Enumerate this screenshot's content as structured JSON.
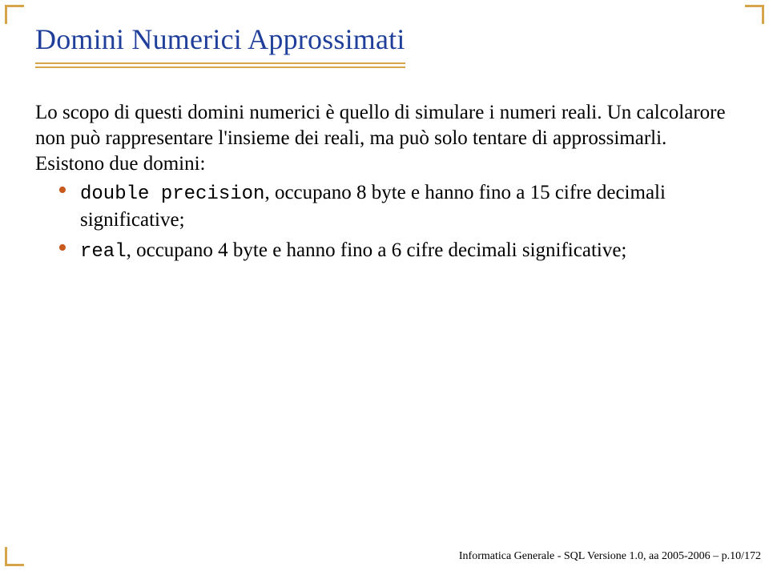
{
  "accent_color": "#d6a54a",
  "title_color": "#1f3f9b",
  "bullet_color": "#c85a1e",
  "background_color": "#ffffff",
  "text_color": "#000000",
  "title": "Domini Numerici Approssimati",
  "para1": "Lo scopo di questi domini numerici è quello di simulare i numeri reali. Un calcolarore non può rappresentare l'insieme dei reali, ma può solo tentare di approssimarli. Esistono due domini:",
  "bullets": [
    {
      "code": "double precision",
      "rest": ", occupano 8 byte e hanno fino a 15 cifre decimali significative;"
    },
    {
      "code": "real",
      "rest": ", occupano 4 byte e hanno fino a 6 cifre decimali significative;"
    }
  ],
  "footer": "Informatica Generale - SQL Versione 1.0, aa 2005-2006 – p.10/172"
}
